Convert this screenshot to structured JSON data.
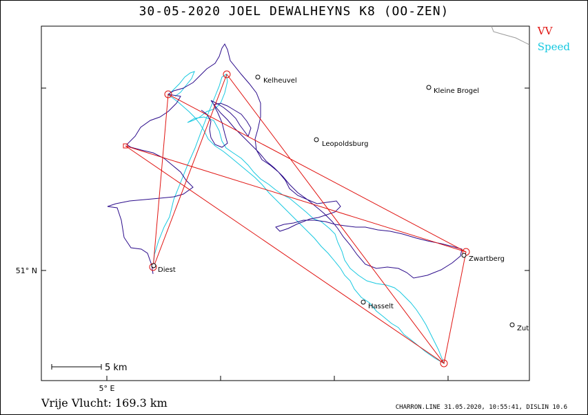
{
  "title": "30-05-2020   JOEL DEWALHEYNS   K8 (OO-ZEN)",
  "legend": {
    "vv_label": "VV",
    "speed_label": "Speed"
  },
  "flight_label": "Vrije Vlucht:",
  "flight_distance": "169.3 km",
  "footer": "CHARRON.LINE 31.05.2020, 10:55:41, DISLIN 10.6",
  "axes": {
    "lon_label": "5° E",
    "lat_label": "51° N"
  },
  "scale": {
    "label": "5 km"
  },
  "towns": [
    {
      "name": "Kelheuvel"
    },
    {
      "name": "Kleine Brogel"
    },
    {
      "name": "Leopoldsburg"
    },
    {
      "name": "Diest"
    },
    {
      "name": "Zwartberg"
    },
    {
      "name": "Hasselt"
    },
    {
      "name": "Zut"
    }
  ],
  "colors": {
    "task": "#e0120f",
    "track": "#2a0a8a",
    "speed": "#16c8e0",
    "border": "#999999"
  }
}
